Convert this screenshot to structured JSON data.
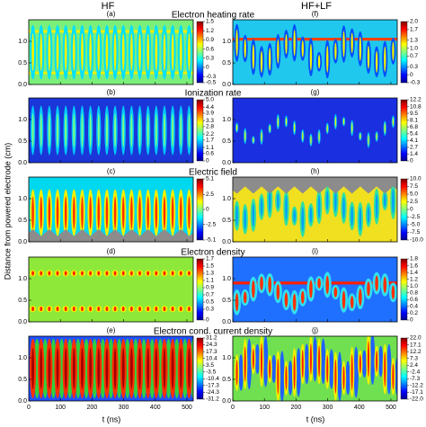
{
  "figure": {
    "columns": [
      "HF",
      "HF+LF"
    ],
    "ylabel": "Distance from powered electrode (cm)",
    "xlabel": "t (ns)"
  },
  "chart_data": [
    {
      "type": "contour",
      "panel": "(a)",
      "title": "Electron heating rate",
      "xlim": [
        0,
        520
      ],
      "xticks": [
        0,
        100,
        200,
        300,
        400,
        500
      ],
      "ylim": [
        0,
        1.5
      ],
      "yticks": [
        {
          "value": 0,
          "label": "0.0"
        },
        0.5,
        {
          "value": 1,
          "label": "1.0"
        }
      ],
      "colorbar_ticks": [
        1.5,
        1.2,
        0.9,
        0.6,
        0.3,
        0,
        -0.3,
        -0.5
      ]
    },
    {
      "type": "contour",
      "panel": "(b)",
      "title": "Ionization rate",
      "xlim": [
        0,
        520
      ],
      "xticks": [
        0,
        100,
        200,
        300,
        400,
        500
      ],
      "ylim": [
        0,
        1.5
      ],
      "yticks": [
        {
          "value": 0,
          "label": "0.0"
        },
        0.5,
        {
          "value": 1,
          "label": "1.0"
        }
      ],
      "colorbar_ticks": [
        {
          "value": 5,
          "label": "5.0"
        },
        4.4,
        3.9,
        3.3,
        2.8,
        2.2,
        1.7,
        1.1,
        0.6,
        0
      ]
    },
    {
      "type": "contour",
      "panel": "(c)",
      "title": "Electric field",
      "xlim": [
        0,
        520
      ],
      "xticks": [
        0,
        100,
        200,
        300,
        400,
        500
      ],
      "ylim": [
        0,
        1.5
      ],
      "yticks": [
        {
          "value": 0,
          "label": "0.0"
        },
        0.5,
        {
          "value": 1,
          "label": "1.0"
        }
      ],
      "colorbar_ticks": [
        5.1,
        2.5,
        0,
        -2.5,
        -5.1
      ]
    },
    {
      "type": "contour",
      "panel": "(d)",
      "title": "Electron density",
      "xlim": [
        0,
        520
      ],
      "xticks": [
        0,
        100,
        200,
        300,
        400,
        500
      ],
      "ylim": [
        0,
        1.5
      ],
      "yticks": [
        {
          "value": 0,
          "label": "0.0"
        },
        0.5,
        {
          "value": 1,
          "label": "1.0"
        }
      ],
      "colorbar_ticks": [
        1.7,
        1.5,
        1.3,
        1.1,
        0.9,
        0.7,
        0.5,
        0.3,
        0
      ]
    },
    {
      "type": "contour",
      "panel": "(e)",
      "title": "Electron cond. current density",
      "xlim": [
        0,
        520
      ],
      "xticks": [
        0,
        100,
        200,
        300,
        400,
        500
      ],
      "ylim": [
        0,
        1.5
      ],
      "yticks": [
        {
          "value": 0,
          "label": "0.0"
        },
        0.5,
        {
          "value": 1,
          "label": "1.0"
        }
      ],
      "colorbar_ticks": [
        31.2,
        24.3,
        17.3,
        10.4,
        3.5,
        -3.5,
        -10.4,
        -17.3,
        -24.3,
        -31.2
      ]
    },
    {
      "type": "contour",
      "panel": "(f)",
      "xlim": [
        0,
        520
      ],
      "xticks": [
        0,
        100,
        200,
        300,
        400,
        500
      ],
      "ylim": [
        0,
        1.5
      ],
      "yticks": [
        {
          "value": 0,
          "label": "0.0"
        },
        0.5,
        {
          "value": 1,
          "label": "1.0"
        }
      ],
      "colorbar_ticks": [
        {
          "value": 2,
          "label": "2.0"
        },
        1.7,
        1.3,
        {
          "value": 1,
          "label": "1.0"
        },
        0.7,
        0.3,
        0,
        -0.3
      ]
    },
    {
      "type": "contour",
      "panel": "(g)",
      "xlim": [
        0,
        520
      ],
      "xticks": [
        0,
        100,
        200,
        300,
        400,
        500
      ],
      "ylim": [
        0,
        1.5
      ],
      "yticks": [
        {
          "value": 0,
          "label": "0.0"
        },
        0.5,
        {
          "value": 1,
          "label": "1.0"
        }
      ],
      "colorbar_ticks": [
        12.2,
        10.8,
        9.5,
        8.1,
        6.8,
        5.4,
        4.1,
        2.7,
        1.4,
        0
      ]
    },
    {
      "type": "contour",
      "panel": "(h)",
      "xlim": [
        0,
        520
      ],
      "xticks": [
        0,
        100,
        200,
        300,
        400,
        500
      ],
      "ylim": [
        0,
        1.5
      ],
      "yticks": [
        {
          "value": 0,
          "label": "0.0"
        },
        0.5,
        {
          "value": 1,
          "label": "1.0"
        }
      ],
      "colorbar_ticks": [
        {
          "value": 10,
          "label": "10.0"
        },
        7.5,
        {
          "value": 5,
          "label": "5.0"
        },
        2.5,
        0,
        -2.5,
        {
          "value": -5,
          "label": "-5.0"
        },
        -7.5,
        {
          "value": -10,
          "label": "-10.0"
        }
      ]
    },
    {
      "type": "contour",
      "panel": "(i)",
      "xlim": [
        0,
        520
      ],
      "xticks": [
        0,
        100,
        200,
        300,
        400,
        500
      ],
      "ylim": [
        0,
        1.5
      ],
      "yticks": [
        {
          "value": 0,
          "label": "0.0"
        },
        0.5,
        {
          "value": 1,
          "label": "1.0"
        }
      ],
      "colorbar_ticks": [
        1.8,
        1.6,
        1.4,
        1.2,
        {
          "value": 1,
          "label": "1.0"
        },
        0.8,
        0.6,
        0.4,
        0.2,
        0
      ]
    },
    {
      "type": "contour",
      "panel": "(j)",
      "xlim": [
        0,
        520
      ],
      "xticks": [
        0,
        100,
        200,
        300,
        400,
        500
      ],
      "ylim": [
        0,
        1.5
      ],
      "yticks": [
        {
          "value": 0,
          "label": "0.0"
        },
        0.5,
        {
          "value": 1,
          "label": "1.0"
        }
      ],
      "colorbar_ticks": [
        {
          "value": 22,
          "label": "22.0"
        },
        17.1,
        12.2,
        7.3,
        2.4,
        -2.4,
        -7.3,
        -12.2,
        -17.1,
        {
          "value": -22,
          "label": "-22.0"
        }
      ]
    }
  ]
}
